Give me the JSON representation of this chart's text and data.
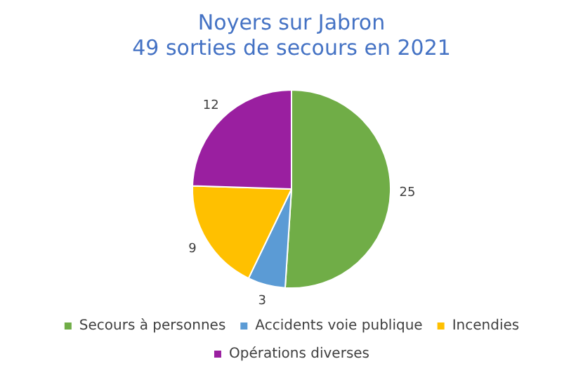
{
  "chart_data": {
    "type": "pie",
    "title": "Noyers sur Jabron",
    "subtitle": "49 sorties de secours en 2021",
    "categories": [
      "Secours à personnes",
      "Accidents voie publique",
      "Incendies",
      "Opérations diverses"
    ],
    "values": [
      25,
      3,
      9,
      12
    ],
    "colors": [
      "#70ad47",
      "#5b9bd5",
      "#ffc000",
      "#9a1fa0"
    ],
    "data_labels": true,
    "legend": "bottom"
  }
}
